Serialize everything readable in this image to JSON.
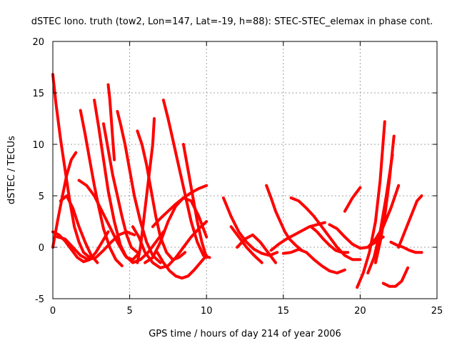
{
  "chart_data": {
    "type": "line",
    "title": "dSTEC Iono. truth (tow2, Lon=147, Lat=-19, h=88): STEC-STEC_elemax in phase cont.",
    "xlabel": "GPS time / hours of day 214 of year 2006",
    "ylabel": "dSTEC  / TECUs",
    "xlim": [
      0,
      25
    ],
    "ylim": [
      -5,
      20
    ],
    "xticks": [
      0,
      5,
      10,
      15,
      20,
      25
    ],
    "yticks": [
      -5,
      0,
      5,
      10,
      15,
      20
    ],
    "grid": true,
    "legend": "none",
    "color": "#ff0000",
    "series": [
      {
        "x": [
          0.0,
          0.2,
          0.5,
          0.8,
          1.1,
          1.4,
          1.7,
          2.0,
          2.4
        ],
        "y": [
          16.8,
          14.0,
          10.5,
          7.5,
          4.5,
          2.0,
          0.5,
          -0.5,
          -1.0
        ]
      },
      {
        "x": [
          0.0,
          0.4,
          0.8,
          1.2,
          1.6,
          2.0,
          2.4,
          2.8,
          3.2,
          3.6
        ],
        "y": [
          1.5,
          1.2,
          0.6,
          -0.2,
          -1.0,
          -1.4,
          -1.2,
          -0.5,
          0.5,
          1.5
        ]
      },
      {
        "x": [
          0.0,
          0.3,
          0.6,
          0.9,
          1.2,
          1.5
        ],
        "y": [
          0.0,
          2.5,
          4.8,
          7.0,
          8.5,
          9.2
        ]
      },
      {
        "x": [
          0.3,
          0.8,
          1.3,
          1.8,
          2.3,
          2.8,
          3.3,
          3.8,
          4.3,
          4.8,
          5.3
        ],
        "y": [
          1.0,
          0.8,
          0.0,
          -0.8,
          -1.2,
          -1.0,
          -0.3,
          0.5,
          1.2,
          1.5,
          1.2
        ]
      },
      {
        "x": [
          0.5,
          0.9,
          1.3,
          1.7,
          2.1,
          2.5,
          2.9
        ],
        "y": [
          4.5,
          5.0,
          3.8,
          2.0,
          0.5,
          -0.8,
          -1.5
        ]
      },
      {
        "x": [
          1.8,
          2.1,
          2.4,
          2.7,
          3.0,
          3.3,
          3.7,
          4.1,
          4.5
        ],
        "y": [
          13.3,
          11.0,
          8.5,
          6.0,
          3.8,
          1.8,
          0.0,
          -1.2,
          -1.8
        ]
      },
      {
        "x": [
          2.7,
          3.0,
          3.3,
          3.6,
          4.0,
          4.4,
          4.8,
          5.2,
          5.6
        ],
        "y": [
          14.3,
          11.5,
          8.5,
          5.5,
          2.5,
          0.2,
          -1.0,
          -1.2,
          -0.6
        ]
      },
      {
        "x": [
          3.3,
          3.6,
          3.9,
          4.2,
          4.5,
          4.8,
          5.1,
          5.5
        ],
        "y": [
          12.0,
          9.5,
          7.0,
          5.0,
          3.0,
          1.2,
          0.0,
          -0.5
        ]
      },
      {
        "x": [
          3.6,
          3.7,
          3.8,
          3.9,
          4.0
        ],
        "y": [
          15.8,
          14.5,
          12.5,
          10.5,
          8.5
        ]
      },
      {
        "x": [
          1.7,
          2.2,
          2.7,
          3.2,
          3.7,
          4.2,
          4.7,
          5.2,
          5.7,
          6.2,
          6.7,
          7.2
        ],
        "y": [
          6.5,
          6.0,
          5.0,
          3.5,
          2.0,
          0.5,
          -0.8,
          -1.5,
          -1.2,
          -0.5,
          0.5,
          1.5
        ]
      },
      {
        "x": [
          4.2,
          4.4,
          4.7,
          5.0,
          5.3,
          5.7,
          6.1,
          6.5,
          7.0
        ],
        "y": [
          13.2,
          12.0,
          10.0,
          7.5,
          5.0,
          2.5,
          0.5,
          -0.8,
          -1.5
        ]
      },
      {
        "x": [
          5.5,
          5.8,
          6.1,
          6.4,
          6.7,
          7.0,
          7.4,
          7.8,
          8.2,
          8.6
        ],
        "y": [
          11.3,
          10.0,
          8.0,
          5.5,
          3.0,
          1.0,
          -0.5,
          -1.2,
          -1.0,
          -0.5
        ]
      },
      {
        "x": [
          6.6,
          6.5,
          6.3,
          6.1,
          5.9,
          5.7,
          5.5
        ],
        "y": [
          12.5,
          10.0,
          7.5,
          5.0,
          2.5,
          0.0,
          -1.5
        ]
      },
      {
        "x": [
          5.2,
          5.6,
          6.0,
          6.5,
          7.0,
          7.5,
          8.0,
          8.5,
          9.0,
          9.5,
          10.0
        ],
        "y": [
          2.0,
          1.0,
          -0.5,
          -1.5,
          -2.0,
          -1.8,
          -1.0,
          0.0,
          1.0,
          1.8,
          2.5
        ]
      },
      {
        "x": [
          6.0,
          6.5,
          7.0,
          7.5,
          8.0,
          8.5,
          9.0,
          9.5,
          10.0
        ],
        "y": [
          -1.5,
          -1.0,
          0.5,
          2.5,
          4.0,
          4.8,
          4.5,
          3.0,
          1.0
        ]
      },
      {
        "x": [
          7.2,
          7.5,
          7.8,
          8.1,
          8.4,
          8.7,
          9.0,
          9.4,
          9.8,
          10.2
        ],
        "y": [
          14.3,
          12.5,
          10.5,
          8.5,
          6.5,
          4.5,
          2.5,
          0.5,
          -0.8,
          -1.0
        ]
      },
      {
        "x": [
          6.8,
          7.2,
          7.6,
          8.0,
          8.4,
          8.8,
          9.2,
          9.6,
          10.0
        ],
        "y": [
          -0.5,
          -1.5,
          -2.3,
          -2.8,
          -3.0,
          -2.8,
          -2.2,
          -1.5,
          -0.8
        ]
      },
      {
        "x": [
          8.5,
          8.8,
          9.1,
          9.4,
          9.7,
          10.0
        ],
        "y": [
          10.0,
          7.5,
          5.0,
          2.5,
          0.5,
          -1.0
        ]
      },
      {
        "x": [
          6.5,
          7.0,
          7.5,
          8.0,
          8.5,
          9.0,
          9.5,
          10.0
        ],
        "y": [
          2.0,
          2.8,
          3.5,
          4.2,
          4.8,
          5.3,
          5.7,
          6.0
        ]
      },
      {
        "x": [
          11.1,
          11.6,
          12.1,
          12.6,
          13.1,
          13.6,
          14.1,
          14.6
        ],
        "y": [
          4.8,
          3.0,
          1.5,
          0.5,
          -0.2,
          -0.6,
          -0.8,
          -0.5
        ]
      },
      {
        "x": [
          11.6,
          12.1,
          12.6,
          13.1,
          13.6
        ],
        "y": [
          2.0,
          1.0,
          0.0,
          -0.8,
          -1.5
        ]
      },
      {
        "x": [
          12.0,
          12.5,
          13.0,
          13.5,
          14.0,
          14.5
        ],
        "y": [
          0.0,
          0.8,
          1.2,
          0.5,
          -0.5,
          -1.5
        ]
      },
      {
        "x": [
          13.9,
          14.2,
          14.5,
          14.8,
          15.1,
          15.4,
          15.8,
          16.2
        ],
        "y": [
          6.0,
          4.8,
          3.5,
          2.5,
          1.5,
          0.8,
          0.2,
          -0.3
        ]
      },
      {
        "x": [
          14.2,
          14.7,
          15.2,
          15.7,
          16.2,
          16.7,
          17.2,
          17.7
        ],
        "y": [
          -0.3,
          0.3,
          0.8,
          1.2,
          1.6,
          2.0,
          2.2,
          2.4
        ]
      },
      {
        "x": [
          15.5,
          16.0,
          16.5,
          17.0,
          17.5,
          18.0,
          18.5,
          19.0,
          19.5,
          20.0
        ],
        "y": [
          4.8,
          4.5,
          3.8,
          3.0,
          2.0,
          1.0,
          0.0,
          -0.8,
          -1.2,
          -1.2
        ]
      },
      {
        "x": [
          15.0,
          15.5,
          16.0,
          16.5,
          17.0,
          17.5,
          18.0,
          18.5,
          19.0
        ],
        "y": [
          -0.6,
          -0.5,
          -0.2,
          -0.5,
          -1.2,
          -1.8,
          -2.3,
          -2.5,
          -2.2
        ]
      },
      {
        "x": [
          16.8,
          17.2,
          17.6,
          18.0,
          18.4,
          18.8,
          19.2
        ],
        "y": [
          2.0,
          1.5,
          0.8,
          0.2,
          -0.3,
          -0.5,
          -0.5
        ]
      },
      {
        "x": [
          18.0,
          18.5,
          19.0,
          19.5,
          20.0,
          20.5,
          21.0,
          21.5
        ],
        "y": [
          2.2,
          1.8,
          1.0,
          0.3,
          -0.1,
          0.0,
          0.5,
          1.0
        ]
      },
      {
        "x": [
          19.8,
          20.2,
          20.6,
          21.0,
          21.3,
          21.6
        ],
        "y": [
          -3.9,
          -2.5,
          -0.5,
          2.5,
          6.5,
          12.2
        ]
      },
      {
        "x": [
          20.5,
          20.9,
          21.3,
          21.7,
          22.1
        ],
        "y": [
          -2.5,
          -1.0,
          1.5,
          5.0,
          9.0
        ]
      },
      {
        "x": [
          21.0,
          21.3,
          21.6,
          21.9,
          22.2
        ],
        "y": [
          -1.5,
          0.5,
          3.0,
          6.5,
          10.8
        ]
      },
      {
        "x": [
          20.5,
          21.0,
          21.5,
          22.0,
          22.5
        ],
        "y": [
          0.0,
          0.8,
          2.0,
          3.8,
          6.0
        ]
      },
      {
        "x": [
          21.5,
          21.9,
          22.3,
          22.7,
          23.1
        ],
        "y": [
          -3.5,
          -3.8,
          -3.8,
          -3.3,
          -2.0
        ]
      },
      {
        "x": [
          22.0,
          22.4,
          22.8,
          23.2,
          23.6,
          24.0
        ],
        "y": [
          0.5,
          0.2,
          0.0,
          -0.3,
          -0.5,
          -0.5
        ]
      },
      {
        "x": [
          22.5,
          22.9,
          23.3,
          23.7,
          24.0
        ],
        "y": [
          0.0,
          1.5,
          3.0,
          4.5,
          5.0
        ]
      },
      {
        "x": [
          19.0,
          19.5,
          20.0
        ],
        "y": [
          3.5,
          4.8,
          5.8
        ]
      }
    ]
  }
}
